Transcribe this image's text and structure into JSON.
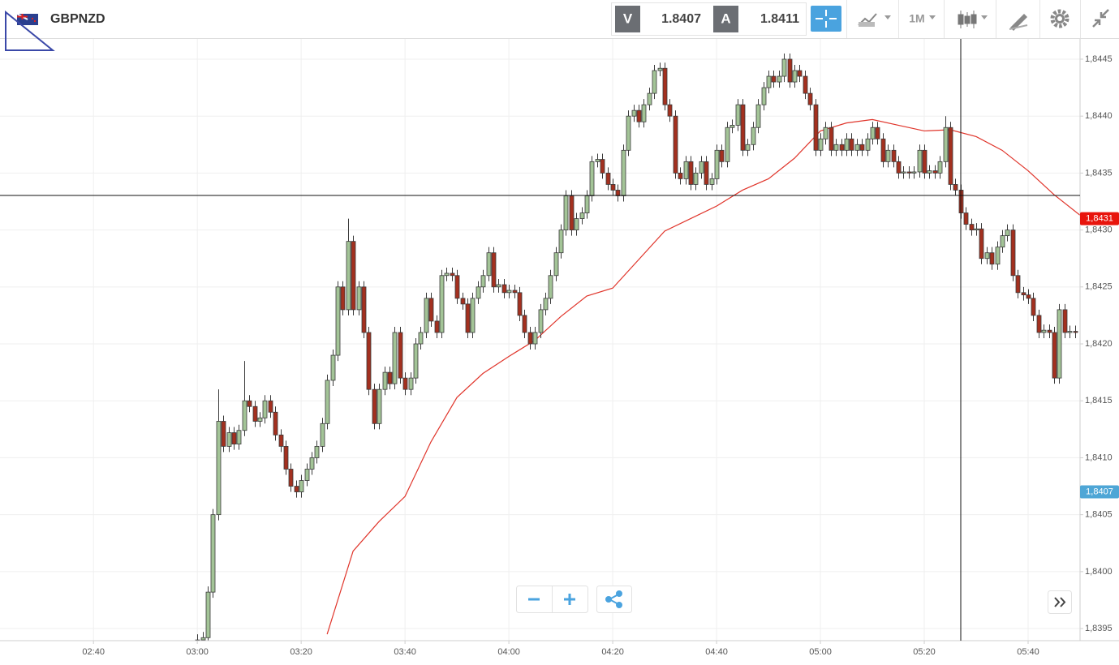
{
  "header": {
    "symbol": "GBPNZD",
    "bid_label": "V",
    "bid": "1.8407",
    "ask_label": "A",
    "ask": "1.8411",
    "timeframe": "1M"
  },
  "chart_data": {
    "type": "candlestick",
    "x": [
      "03:00",
      "03:01",
      "03:02",
      "03:03",
      "03:04",
      "03:05",
      "03:06",
      "03:07",
      "03:08",
      "03:09",
      "03:10",
      "03:11",
      "03:12",
      "03:13",
      "03:14",
      "03:15",
      "03:16",
      "03:17",
      "03:18",
      "03:19",
      "03:20",
      "03:21",
      "03:22",
      "03:23",
      "03:24",
      "03:25",
      "03:26",
      "03:27",
      "03:28",
      "03:29",
      "03:30",
      "03:31",
      "03:32",
      "03:33",
      "03:34",
      "03:35",
      "03:36",
      "03:37",
      "03:38",
      "03:39",
      "03:40",
      "03:41",
      "03:42",
      "03:43",
      "03:44",
      "03:45",
      "03:46",
      "03:47",
      "03:48",
      "03:49",
      "03:50",
      "03:51",
      "03:52",
      "03:53",
      "03:54",
      "03:55",
      "03:56",
      "03:57",
      "03:58",
      "03:59",
      "04:00",
      "04:01",
      "04:02",
      "04:03",
      "04:04",
      "04:05",
      "04:06",
      "04:07",
      "04:08",
      "04:09",
      "04:10",
      "04:11",
      "04:12",
      "04:13",
      "04:14",
      "04:15",
      "04:16",
      "04:17",
      "04:18",
      "04:19",
      "04:20",
      "04:21",
      "04:22",
      "04:23",
      "04:24",
      "04:25",
      "04:26",
      "04:27",
      "04:28",
      "04:29",
      "04:30",
      "04:31",
      "04:32",
      "04:33",
      "04:34",
      "04:35",
      "04:36",
      "04:37",
      "04:38",
      "04:39",
      "04:40",
      "04:41",
      "04:42",
      "04:43",
      "04:44",
      "04:45",
      "04:46",
      "04:47",
      "04:48",
      "04:49",
      "04:50",
      "04:51",
      "04:52",
      "04:53",
      "04:54",
      "04:55",
      "04:56",
      "04:57",
      "04:58",
      "04:59",
      "05:00",
      "05:01",
      "05:02",
      "05:03",
      "05:04",
      "05:05",
      "05:06",
      "05:07",
      "05:08",
      "05:09",
      "05:10",
      "05:11",
      "05:12",
      "05:13",
      "05:14",
      "05:15",
      "05:16",
      "05:17",
      "05:18",
      "05:19",
      "05:20",
      "05:21",
      "05:22",
      "05:23",
      "05:24",
      "05:25",
      "05:26",
      "05:27",
      "05:28",
      "05:29",
      "05:30",
      "05:31",
      "05:32",
      "05:33",
      "05:34",
      "05:35",
      "05:36",
      "05:37",
      "05:38",
      "05:39",
      "05:40",
      "05:41",
      "05:42",
      "05:43",
      "05:44",
      "05:45",
      "05:46",
      "05:47",
      "05:48",
      "05:49"
    ],
    "open": [
      1.83939,
      1.8394,
      1.83942,
      1.83982,
      1.8405,
      1.84132,
      1.8411,
      1.84122,
      1.84112,
      1.84124,
      1.8415,
      1.84145,
      1.84132,
      1.84135,
      1.8415,
      1.8414,
      1.8412,
      1.8411,
      1.8409,
      1.84075,
      1.8407,
      1.8408,
      1.8409,
      1.841,
      1.8411,
      1.8413,
      1.84168,
      1.8419,
      1.8425,
      1.8423,
      1.8429,
      1.8423,
      1.8425,
      1.8421,
      1.8416,
      1.8413,
      1.8416,
      1.84175,
      1.84165,
      1.8421,
      1.8417,
      1.8416,
      1.8417,
      1.842,
      1.8421,
      1.8424,
      1.8422,
      1.8421,
      1.8426,
      1.84262,
      1.8426,
      1.8424,
      1.84235,
      1.8421,
      1.8424,
      1.8425,
      1.8426,
      1.8428,
      1.8425,
      1.84252,
      1.84245,
      1.84247,
      1.84245,
      1.84225,
      1.8421,
      1.842,
      1.8421,
      1.8423,
      1.8424,
      1.8426,
      1.8428,
      1.843,
      1.8433,
      1.843,
      1.8431,
      1.84315,
      1.8433,
      1.8436,
      1.84362,
      1.8435,
      1.8434,
      1.84335,
      1.8433,
      1.8437,
      1.844,
      1.84405,
      1.84395,
      1.8441,
      1.8442,
      1.8444,
      1.84442,
      1.8441,
      1.844,
      1.8435,
      1.84345,
      1.8436,
      1.8434,
      1.8435,
      1.8436,
      1.8434,
      1.84345,
      1.8437,
      1.8436,
      1.8439,
      1.84392,
      1.8441,
      1.8437,
      1.84375,
      1.8439,
      1.8441,
      1.84425,
      1.84435,
      1.8443,
      1.84435,
      1.8445,
      1.8443,
      1.8444,
      1.84435,
      1.8442,
      1.8441,
      1.8437,
      1.8438,
      1.8439,
      1.8437,
      1.84375,
      1.8437,
      1.8438,
      1.8437,
      1.84375,
      1.8437,
      1.8438,
      1.8439,
      1.8438,
      1.8436,
      1.8437,
      1.8436,
      1.8435,
      1.84351,
      1.8435,
      1.84351,
      1.8437,
      1.8435,
      1.84352,
      1.8435,
      1.8436,
      1.8439,
      1.8434,
      1.84335,
      1.84315,
      1.84305,
      1.843,
      1.84301,
      1.84275,
      1.8428,
      1.8427,
      1.84285,
      1.84295,
      1.843,
      1.8426,
      1.84245,
      1.84243,
      1.8424,
      1.84225,
      1.8421,
      1.84212,
      1.8421,
      1.8417,
      1.8423,
      1.8421,
      1.84211
    ],
    "high": [
      1.83945,
      1.83947,
      1.83987,
      1.84055,
      1.8416,
      1.84137,
      1.84127,
      1.84127,
      1.84129,
      1.84185,
      1.84155,
      1.8415,
      1.8414,
      1.84155,
      1.84155,
      1.84145,
      1.84125,
      1.84115,
      1.84095,
      1.8408,
      1.84085,
      1.84095,
      1.84105,
      1.84115,
      1.84135,
      1.84173,
      1.84195,
      1.84255,
      1.84255,
      1.8431,
      1.84295,
      1.84255,
      1.84255,
      1.84215,
      1.84165,
      1.84165,
      1.8418,
      1.8418,
      1.84215,
      1.84215,
      1.84175,
      1.84175,
      1.84205,
      1.84215,
      1.84245,
      1.84245,
      1.84225,
      1.84265,
      1.84267,
      1.84267,
      1.84265,
      1.84245,
      1.8424,
      1.84245,
      1.84255,
      1.84265,
      1.84285,
      1.84285,
      1.84257,
      1.84257,
      1.84252,
      1.84252,
      1.8425,
      1.8423,
      1.84215,
      1.84215,
      1.84235,
      1.84245,
      1.84265,
      1.84285,
      1.84305,
      1.84335,
      1.84335,
      1.84315,
      1.8432,
      1.84335,
      1.84365,
      1.84367,
      1.84367,
      1.84355,
      1.84345,
      1.8434,
      1.84375,
      1.84405,
      1.8441,
      1.8441,
      1.84415,
      1.84425,
      1.84445,
      1.84447,
      1.84447,
      1.84415,
      1.84405,
      1.84355,
      1.84365,
      1.84365,
      1.84355,
      1.84365,
      1.84365,
      1.8435,
      1.84375,
      1.84375,
      1.84395,
      1.84397,
      1.84415,
      1.84415,
      1.8438,
      1.84395,
      1.84415,
      1.8443,
      1.8444,
      1.8444,
      1.8444,
      1.84455,
      1.84455,
      1.84445,
      1.84445,
      1.8444,
      1.84425,
      1.84415,
      1.84385,
      1.84395,
      1.84395,
      1.8438,
      1.8438,
      1.84385,
      1.84385,
      1.8438,
      1.8438,
      1.84385,
      1.84395,
      1.84395,
      1.84385,
      1.84375,
      1.84375,
      1.84365,
      1.84356,
      1.84356,
      1.84356,
      1.84375,
      1.84375,
      1.84357,
      1.84357,
      1.84365,
      1.844,
      1.84395,
      1.84345,
      1.8434,
      1.8432,
      1.8431,
      1.84306,
      1.84306,
      1.84285,
      1.84285,
      1.8429,
      1.843,
      1.84305,
      1.84305,
      1.84265,
      1.8425,
      1.84248,
      1.84245,
      1.8423,
      1.84217,
      1.84217,
      1.84215,
      1.84235,
      1.84235,
      1.84216,
      1.84216
    ],
    "low": [
      1.83934,
      1.83935,
      1.83937,
      1.83977,
      1.84045,
      1.84105,
      1.84105,
      1.84107,
      1.84107,
      1.84119,
      1.8414,
      1.84127,
      1.84127,
      1.8413,
      1.84135,
      1.84115,
      1.84105,
      1.84085,
      1.8407,
      1.84065,
      1.84065,
      1.84075,
      1.84085,
      1.84095,
      1.84105,
      1.84125,
      1.84163,
      1.84185,
      1.84225,
      1.84225,
      1.84225,
      1.84225,
      1.84205,
      1.84155,
      1.84125,
      1.84125,
      1.84155,
      1.8416,
      1.8416,
      1.84165,
      1.84155,
      1.84155,
      1.84165,
      1.84195,
      1.84205,
      1.84215,
      1.84205,
      1.84205,
      1.84255,
      1.84255,
      1.84235,
      1.8423,
      1.84205,
      1.84205,
      1.84235,
      1.84245,
      1.84255,
      1.84245,
      1.84245,
      1.8424,
      1.8424,
      1.8424,
      1.8422,
      1.84205,
      1.84195,
      1.84195,
      1.84205,
      1.84225,
      1.84235,
      1.84255,
      1.84275,
      1.84295,
      1.84295,
      1.84295,
      1.84305,
      1.8431,
      1.84325,
      1.84355,
      1.84345,
      1.84335,
      1.8433,
      1.84325,
      1.84325,
      1.84365,
      1.84395,
      1.8439,
      1.8439,
      1.84405,
      1.84415,
      1.84435,
      1.84405,
      1.84395,
      1.84345,
      1.8434,
      1.8434,
      1.84335,
      1.84335,
      1.84345,
      1.84335,
      1.84335,
      1.8434,
      1.84355,
      1.84355,
      1.84385,
      1.84387,
      1.84365,
      1.84365,
      1.8437,
      1.84385,
      1.84405,
      1.8442,
      1.84425,
      1.84425,
      1.8443,
      1.84425,
      1.84425,
      1.8443,
      1.84415,
      1.84405,
      1.84365,
      1.84365,
      1.84375,
      1.84365,
      1.84365,
      1.84365,
      1.84365,
      1.84365,
      1.84365,
      1.84365,
      1.84365,
      1.84375,
      1.84375,
      1.84355,
      1.84355,
      1.84355,
      1.84345,
      1.84345,
      1.84345,
      1.84345,
      1.84346,
      1.84345,
      1.84345,
      1.84345,
      1.84345,
      1.84355,
      1.84335,
      1.8433,
      1.8431,
      1.843,
      1.84295,
      1.84295,
      1.8427,
      1.8427,
      1.84265,
      1.84265,
      1.8428,
      1.8429,
      1.84255,
      1.8424,
      1.84238,
      1.84235,
      1.8422,
      1.84205,
      1.84205,
      1.84205,
      1.84165,
      1.84165,
      1.84205,
      1.84205,
      1.84205
    ],
    "close": [
      1.8394,
      1.83942,
      1.83982,
      1.8405,
      1.84132,
      1.8411,
      1.84122,
      1.84112,
      1.84124,
      1.8415,
      1.84145,
      1.84132,
      1.84135,
      1.8415,
      1.8414,
      1.8412,
      1.8411,
      1.8409,
      1.84075,
      1.8407,
      1.8408,
      1.8409,
      1.841,
      1.8411,
      1.8413,
      1.84168,
      1.8419,
      1.8425,
      1.8423,
      1.8429,
      1.8423,
      1.8425,
      1.8421,
      1.8416,
      1.8413,
      1.8416,
      1.84175,
      1.84165,
      1.8421,
      1.8417,
      1.8416,
      1.8417,
      1.842,
      1.8421,
      1.8424,
      1.8422,
      1.8421,
      1.8426,
      1.84262,
      1.8426,
      1.8424,
      1.84235,
      1.8421,
      1.8424,
      1.8425,
      1.8426,
      1.8428,
      1.8425,
      1.84252,
      1.84245,
      1.84247,
      1.84245,
      1.84225,
      1.8421,
      1.842,
      1.8421,
      1.8423,
      1.8424,
      1.8426,
      1.8428,
      1.843,
      1.8433,
      1.843,
      1.8431,
      1.84315,
      1.8433,
      1.8436,
      1.84362,
      1.8435,
      1.8434,
      1.84335,
      1.8433,
      1.8437,
      1.844,
      1.84405,
      1.84395,
      1.8441,
      1.8442,
      1.8444,
      1.84442,
      1.8441,
      1.844,
      1.8435,
      1.84345,
      1.8436,
      1.8434,
      1.8435,
      1.8436,
      1.8434,
      1.84345,
      1.8437,
      1.8436,
      1.8439,
      1.84392,
      1.8441,
      1.8437,
      1.84375,
      1.8439,
      1.8441,
      1.84425,
      1.84435,
      1.8443,
      1.84435,
      1.8445,
      1.8443,
      1.8444,
      1.84435,
      1.8442,
      1.8441,
      1.8437,
      1.8438,
      1.8439,
      1.8437,
      1.84375,
      1.8437,
      1.8438,
      1.8437,
      1.84375,
      1.8437,
      1.8438,
      1.8439,
      1.8438,
      1.8436,
      1.8437,
      1.8436,
      1.8435,
      1.84351,
      1.8435,
      1.84351,
      1.8437,
      1.8435,
      1.84352,
      1.8435,
      1.8436,
      1.8439,
      1.8434,
      1.84335,
      1.84315,
      1.84305,
      1.843,
      1.84301,
      1.84275,
      1.8428,
      1.8427,
      1.84285,
      1.84295,
      1.843,
      1.8426,
      1.84245,
      1.84243,
      1.8424,
      1.84225,
      1.8421,
      1.84212,
      1.8421,
      1.8417,
      1.8423,
      1.8421,
      1.84211,
      1.8421
    ],
    "up_color": "#a3c497",
    "down_color": "#a3301f",
    "candle_outline": "#3a3a3a",
    "moving_average": {
      "color": "#e0352b",
      "x": [
        "03:25",
        "03:30",
        "03:35",
        "03:40",
        "03:45",
        "03:50",
        "03:55",
        "04:00",
        "04:05",
        "04:10",
        "04:15",
        "04:20",
        "04:25",
        "04:30",
        "04:35",
        "04:40",
        "04:45",
        "04:50",
        "04:55",
        "05:00",
        "05:05",
        "05:10",
        "05:15",
        "05:20",
        "05:25",
        "05:30",
        "05:35",
        "05:40",
        "05:45",
        "05:50"
      ],
      "values": [
        1.83945,
        1.84018,
        1.84044,
        1.84066,
        1.84114,
        1.84153,
        1.84174,
        1.84189,
        1.84203,
        1.84224,
        1.84242,
        1.84249,
        1.84274,
        1.84299,
        1.8431,
        1.84321,
        1.84335,
        1.84345,
        1.84363,
        1.84387,
        1.84394,
        1.84397,
        1.84392,
        1.84387,
        1.84388,
        1.84382,
        1.8437,
        1.84352,
        1.84331,
        1.84313
      ]
    },
    "xlim": [
      "02:22",
      "05:50"
    ],
    "xticks": [
      "02:40",
      "03:00",
      "03:20",
      "03:40",
      "04:00",
      "04:20",
      "04:40",
      "05:00",
      "05:20",
      "05:40"
    ],
    "ylim": [
      1.8394,
      1.8447
    ],
    "yticks": [
      {
        "value": 1.8395,
        "label": "1,8395"
      },
      {
        "value": 1.84,
        "label": "1,8400"
      },
      {
        "value": 1.8405,
        "label": "1,8405"
      },
      {
        "value": 1.841,
        "label": "1,8410"
      },
      {
        "value": 1.8415,
        "label": "1,8415"
      },
      {
        "value": 1.842,
        "label": "1,8420"
      },
      {
        "value": 1.8425,
        "label": "1,8425"
      },
      {
        "value": 1.843,
        "label": "1,8430"
      },
      {
        "value": 1.8435,
        "label": "1,8435"
      },
      {
        "value": 1.844,
        "label": "1,8440"
      },
      {
        "value": 1.8445,
        "label": "1,8445"
      }
    ],
    "price_tags": [
      {
        "value": 1.8431,
        "label": "1,8431",
        "color": "#e8140c"
      },
      {
        "value": 1.8407,
        "label": "1,8407",
        "color": "#4ea6d6"
      }
    ],
    "grid": true
  }
}
